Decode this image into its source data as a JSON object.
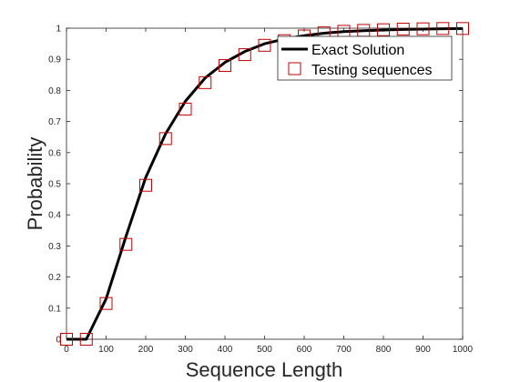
{
  "chart_data": {
    "type": "line",
    "title": "",
    "xlabel": "Sequence Length",
    "ylabel": "Probability",
    "xlim": [
      0,
      1000
    ],
    "ylim": [
      0,
      1
    ],
    "xticks": [
      0,
      100,
      200,
      300,
      400,
      500,
      600,
      700,
      800,
      900,
      1000
    ],
    "xtick_labels": [
      "0",
      "100",
      "200",
      "300",
      "400",
      "500",
      "600",
      "700",
      "800",
      "900",
      "1000"
    ],
    "yticks": [
      0,
      0.1,
      0.2,
      0.3,
      0.4,
      0.5,
      0.6,
      0.7,
      0.8,
      0.9,
      1
    ],
    "ytick_labels": [
      "0",
      "0.1",
      "0.2",
      "0.3",
      "0.4",
      "0.5",
      "0.6",
      "0.7",
      "0.8",
      "0.9",
      "1"
    ],
    "grid": false,
    "legend_position": "top-right",
    "series": [
      {
        "name": "Exact Solution",
        "style": "line",
        "color": "#000000",
        "x": [
          0,
          50,
          100,
          150,
          200,
          250,
          300,
          350,
          400,
          450,
          500,
          550,
          600,
          650,
          700,
          750,
          800,
          850,
          900,
          950,
          1000
        ],
        "y": [
          0,
          0,
          0.13,
          0.33,
          0.52,
          0.66,
          0.765,
          0.84,
          0.89,
          0.925,
          0.95,
          0.965,
          0.976,
          0.984,
          0.989,
          0.992,
          0.994,
          0.996,
          0.997,
          0.998,
          0.999
        ]
      },
      {
        "name": "Testing sequences",
        "style": "marker-square",
        "color": "#c00000",
        "x": [
          0,
          50,
          100,
          150,
          200,
          250,
          300,
          350,
          400,
          450,
          500,
          550,
          600,
          650,
          700,
          750,
          800,
          850,
          900,
          950,
          1000
        ],
        "y": [
          0,
          0,
          0.115,
          0.305,
          0.495,
          0.645,
          0.74,
          0.825,
          0.88,
          0.915,
          0.945,
          0.96,
          0.975,
          0.985,
          0.99,
          0.993,
          0.995,
          0.997,
          0.998,
          0.999,
          0.999
        ]
      }
    ]
  }
}
